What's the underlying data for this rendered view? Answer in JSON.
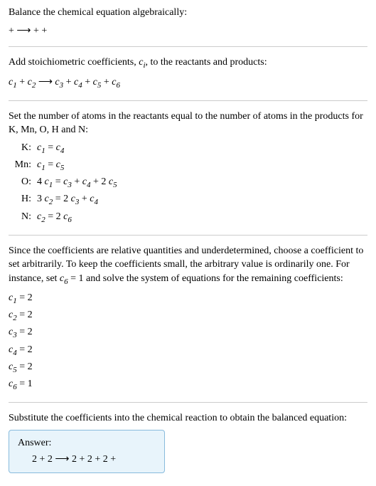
{
  "title": "Balance the chemical equation algebraically:",
  "eq1": " +  ⟶  +  + ",
  "section2_text": "Add stoichiometric coefficients, ",
  "section2_ci": "c",
  "section2_ci_sub": "i",
  "section2_text2": ", to the reactants and products:",
  "eq2_parts": {
    "c1": "c",
    "c1s": "1",
    "c2": "c",
    "c2s": "2",
    "arrow": "⟶",
    "c3": "c",
    "c3s": "3",
    "c4": "c",
    "c4s": "4",
    "c5": "c",
    "c5s": "5",
    "c6": "c",
    "c6s": "6"
  },
  "section3_text": "Set the number of atoms in the reactants equal to the number of atoms in the products for K, Mn, O, H and N:",
  "atoms": {
    "K": {
      "label": "K:",
      "lhs_c": "c",
      "lhs_s": "1",
      "eq": " = ",
      "rhs_c": "c",
      "rhs_s": "4"
    },
    "Mn": {
      "label": "Mn:",
      "lhs_c": "c",
      "lhs_s": "1",
      "eq": " = ",
      "rhs_c": "c",
      "rhs_s": "5"
    },
    "O": {
      "label": "O:",
      "lhs_pre": "4 ",
      "lhs_c": "c",
      "lhs_s": "1",
      "eq": " = ",
      "r1_c": "c",
      "r1_s": "3",
      "plus1": " + ",
      "r2_c": "c",
      "r2_s": "4",
      "plus2": " + 2 ",
      "r3_c": "c",
      "r3_s": "5"
    },
    "H": {
      "label": "H:",
      "lhs_pre": "3 ",
      "lhs_c": "c",
      "lhs_s": "2",
      "eq": " = 2 ",
      "r1_c": "c",
      "r1_s": "3",
      "plus1": " + ",
      "r2_c": "c",
      "r2_s": "4"
    },
    "N": {
      "label": "N:",
      "lhs_c": "c",
      "lhs_s": "2",
      "eq": " = 2 ",
      "rhs_c": "c",
      "rhs_s": "6"
    }
  },
  "section4_text": "Since the coefficients are relative quantities and underdetermined, choose a coefficient to set arbitrarily. To keep the coefficients small, the arbitrary value is ordinarily one. For instance, set ",
  "section4_c6": "c",
  "section4_c6s": "6",
  "section4_text2": " = 1 and solve the system of equations for the remaining coefficients:",
  "coeffs": {
    "c1": {
      "c": "c",
      "s": "1",
      "val": " = 2"
    },
    "c2": {
      "c": "c",
      "s": "2",
      "val": " = 2"
    },
    "c3": {
      "c": "c",
      "s": "3",
      "val": " = 2"
    },
    "c4": {
      "c": "c",
      "s": "4",
      "val": " = 2"
    },
    "c5": {
      "c": "c",
      "s": "5",
      "val": " = 2"
    },
    "c6": {
      "c": "c",
      "s": "6",
      "val": " = 1"
    }
  },
  "section5_text": "Substitute the coefficients into the chemical reaction to obtain the balanced equation:",
  "answer_label": "Answer:",
  "answer_eq": "2  + 2  ⟶ 2  + 2  + 2  + "
}
